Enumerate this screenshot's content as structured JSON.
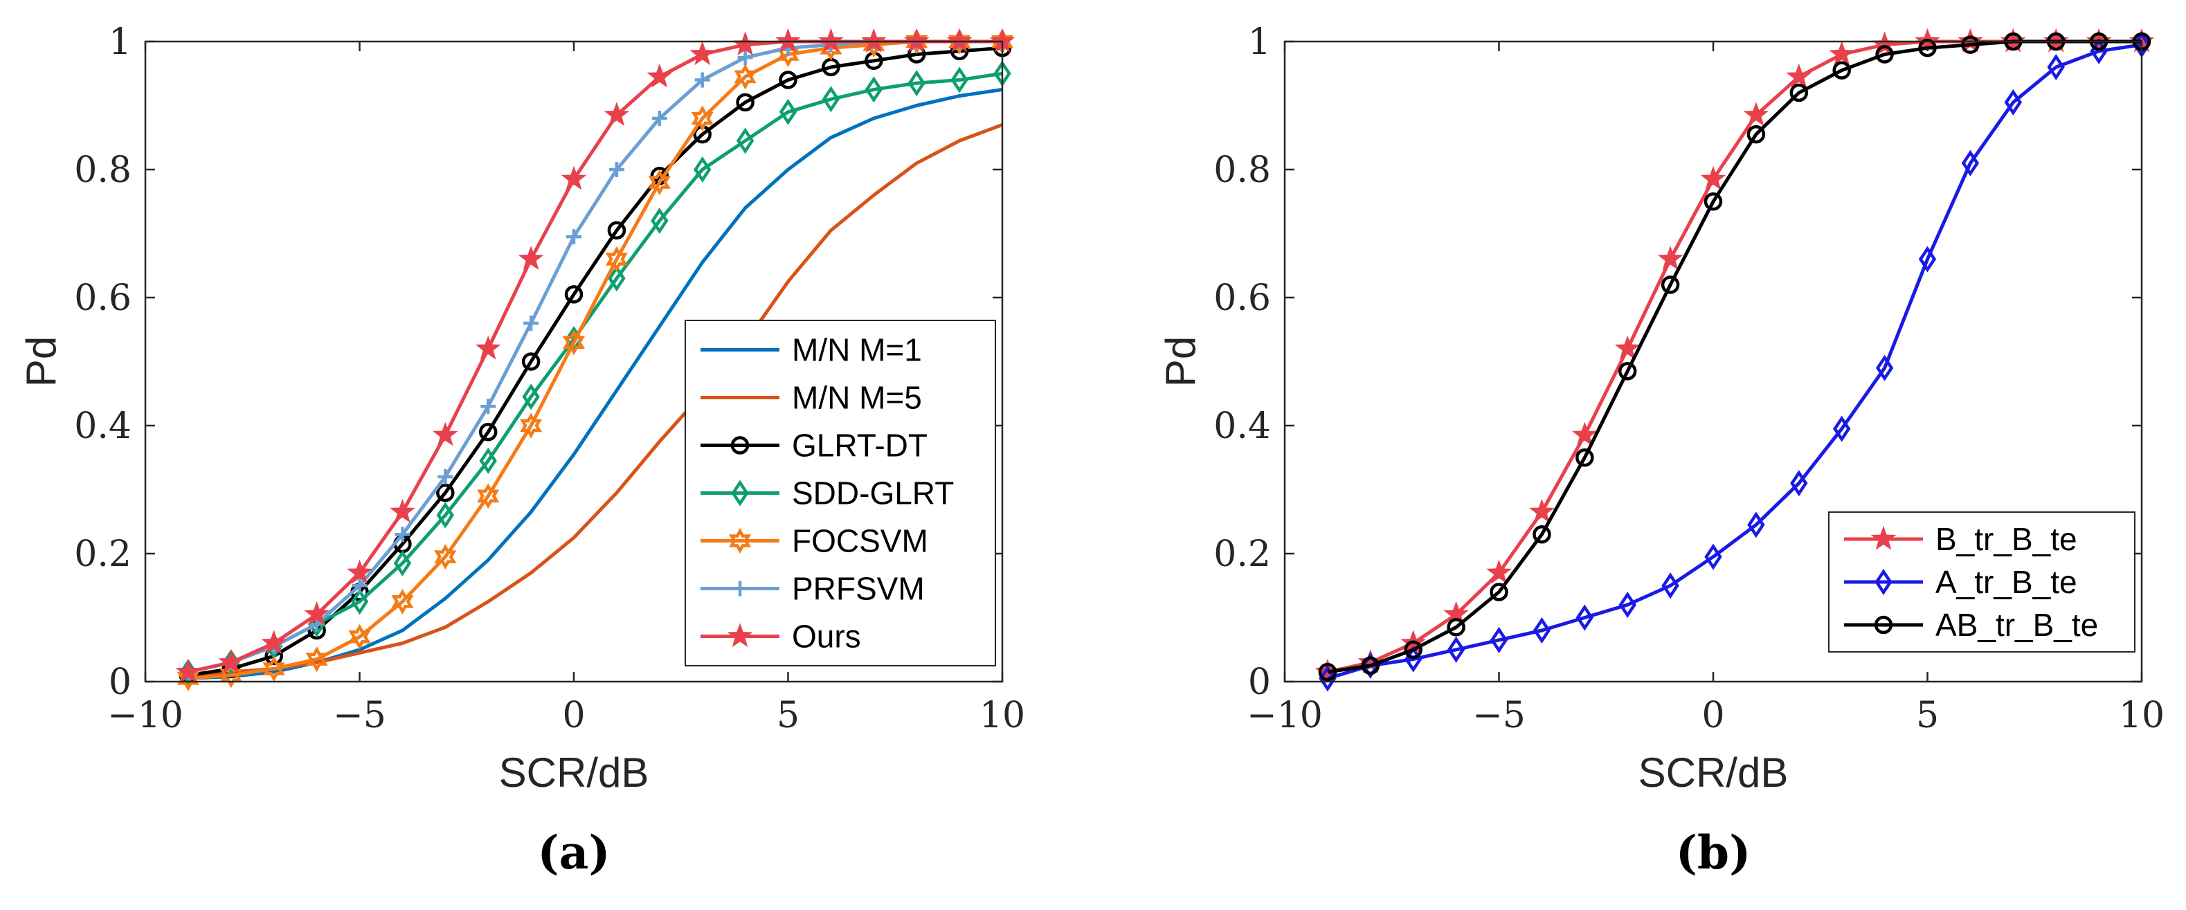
{
  "chart_data": [
    {
      "type": "line",
      "panel_label": "(a)",
      "xlabel": "SCR/dB",
      "ylabel": "Pd",
      "xlim": [
        -10,
        10
      ],
      "ylim": [
        0,
        1
      ],
      "xticks": [
        -10,
        -5,
        0,
        5,
        10
      ],
      "xtick_labels": [
        "−10",
        "−5",
        "0",
        "5",
        "10"
      ],
      "yticks": [
        0,
        0.2,
        0.4,
        0.6,
        0.8,
        1
      ],
      "ytick_labels": [
        "0",
        "0.2",
        "0.4",
        "0.6",
        "0.8",
        "1"
      ],
      "grid": false,
      "legend_position": "bottom-right",
      "series": [
        {
          "name": "M/N M=1",
          "color": "#0072BD",
          "marker": "none",
          "x": [
            -9,
            -8,
            -7,
            -6,
            -5,
            -4,
            -3,
            -2,
            -1,
            0,
            1,
            2,
            3,
            4,
            5,
            6,
            7,
            8,
            9,
            10
          ],
          "y": [
            0.005,
            0.008,
            0.015,
            0.03,
            0.05,
            0.08,
            0.13,
            0.19,
            0.265,
            0.355,
            0.455,
            0.555,
            0.655,
            0.74,
            0.8,
            0.85,
            0.88,
            0.9,
            0.915,
            0.925
          ]
        },
        {
          "name": "M/N M=5",
          "color": "#D95319",
          "marker": "none",
          "x": [
            -9,
            -8,
            -7,
            -6,
            -5,
            -4,
            -3,
            -2,
            -1,
            0,
            1,
            2,
            3,
            4,
            5,
            6,
            7,
            8,
            9,
            10
          ],
          "y": [
            0.01,
            0.015,
            0.02,
            0.03,
            0.045,
            0.06,
            0.085,
            0.125,
            0.17,
            0.225,
            0.295,
            0.375,
            0.45,
            0.53,
            0.625,
            0.705,
            0.76,
            0.81,
            0.845,
            0.87
          ]
        },
        {
          "name": "GLRT-DT",
          "color": "#000000",
          "marker": "circle",
          "x": [
            -9,
            -8,
            -7,
            -6,
            -5,
            -4,
            -3,
            -2,
            -1,
            0,
            1,
            2,
            3,
            4,
            5,
            6,
            7,
            8,
            9,
            10
          ],
          "y": [
            0.01,
            0.02,
            0.04,
            0.08,
            0.14,
            0.215,
            0.295,
            0.39,
            0.5,
            0.605,
            0.705,
            0.79,
            0.855,
            0.905,
            0.94,
            0.96,
            0.97,
            0.98,
            0.985,
            0.99
          ]
        },
        {
          "name": "SDD-GLRT",
          "color": "#0E9F71",
          "marker": "diamond",
          "x": [
            -9,
            -8,
            -7,
            -6,
            -5,
            -4,
            -3,
            -2,
            -1,
            0,
            1,
            2,
            3,
            4,
            5,
            6,
            7,
            8,
            9,
            10
          ],
          "y": [
            0.015,
            0.03,
            0.055,
            0.09,
            0.125,
            0.185,
            0.26,
            0.345,
            0.445,
            0.535,
            0.63,
            0.72,
            0.8,
            0.845,
            0.89,
            0.91,
            0.925,
            0.935,
            0.94,
            0.95
          ]
        },
        {
          "name": "FOCSVM",
          "color": "#F47B16",
          "marker": "hexagram",
          "x": [
            -9,
            -8,
            -7,
            -6,
            -5,
            -4,
            -3,
            -2,
            -1,
            0,
            1,
            2,
            3,
            4,
            5,
            6,
            7,
            8,
            9,
            10
          ],
          "y": [
            0.005,
            0.01,
            0.02,
            0.035,
            0.07,
            0.125,
            0.195,
            0.29,
            0.4,
            0.53,
            0.66,
            0.78,
            0.88,
            0.945,
            0.98,
            0.99,
            0.995,
            1,
            1,
            1
          ]
        },
        {
          "name": "PRFSVM",
          "color": "#6A9FD4",
          "marker": "plus",
          "x": [
            -9,
            -8,
            -7,
            -6,
            -5,
            -4,
            -3,
            -2,
            -1,
            0,
            1,
            2,
            3,
            4,
            5,
            6,
            7,
            8,
            9,
            10
          ],
          "y": [
            0.015,
            0.03,
            0.055,
            0.09,
            0.15,
            0.23,
            0.32,
            0.43,
            0.56,
            0.695,
            0.8,
            0.88,
            0.94,
            0.975,
            0.99,
            0.995,
            1,
            1,
            1,
            1
          ]
        },
        {
          "name": "Ours",
          "color": "#E8414B",
          "marker": "pentagram",
          "x": [
            -9,
            -8,
            -7,
            -6,
            -5,
            -4,
            -3,
            -2,
            -1,
            0,
            1,
            2,
            3,
            4,
            5,
            6,
            7,
            8,
            9,
            10
          ],
          "y": [
            0.015,
            0.03,
            0.06,
            0.105,
            0.17,
            0.265,
            0.385,
            0.52,
            0.66,
            0.785,
            0.885,
            0.945,
            0.98,
            0.995,
            1,
            1,
            1,
            1,
            1,
            1
          ]
        }
      ]
    },
    {
      "type": "line",
      "panel_label": "(b)",
      "xlabel": "SCR/dB",
      "ylabel": "Pd",
      "xlim": [
        -10,
        10
      ],
      "ylim": [
        0,
        1
      ],
      "xticks": [
        -10,
        -5,
        0,
        5,
        10
      ],
      "xtick_labels": [
        "−10",
        "−5",
        "0",
        "5",
        "10"
      ],
      "yticks": [
        0,
        0.2,
        0.4,
        0.6,
        0.8,
        1
      ],
      "ytick_labels": [
        "0",
        "0.2",
        "0.4",
        "0.6",
        "0.8",
        "1"
      ],
      "grid": false,
      "legend_position": "bottom-right",
      "series": [
        {
          "name": "B_tr_B_te",
          "color": "#E8414B",
          "marker": "pentagram",
          "x": [
            -9,
            -8,
            -7,
            -6,
            -5,
            -4,
            -3,
            -2,
            -1,
            0,
            1,
            2,
            3,
            4,
            5,
            6,
            7,
            8,
            9,
            10
          ],
          "y": [
            0.015,
            0.03,
            0.06,
            0.105,
            0.17,
            0.265,
            0.385,
            0.52,
            0.66,
            0.785,
            0.885,
            0.945,
            0.98,
            0.995,
            1,
            1,
            1,
            1,
            1,
            1
          ]
        },
        {
          "name": "A_tr_B_te",
          "color": "#1A1AE6",
          "marker": "diamond",
          "x": [
            -9,
            -8,
            -7,
            -6,
            -5,
            -4,
            -3,
            -2,
            -1,
            0,
            1,
            2,
            3,
            4,
            5,
            6,
            7,
            8,
            9,
            10
          ],
          "y": [
            0.005,
            0.025,
            0.035,
            0.05,
            0.065,
            0.08,
            0.1,
            0.12,
            0.15,
            0.195,
            0.245,
            0.31,
            0.395,
            0.49,
            0.66,
            0.81,
            0.905,
            0.96,
            0.985,
            0.995
          ]
        },
        {
          "name": "AB_tr_B_te",
          "color": "#000000",
          "marker": "circle",
          "x": [
            -9,
            -8,
            -7,
            -6,
            -5,
            -4,
            -3,
            -2,
            -1,
            0,
            1,
            2,
            3,
            4,
            5,
            6,
            7,
            8,
            9,
            10
          ],
          "y": [
            0.015,
            0.025,
            0.05,
            0.085,
            0.14,
            0.23,
            0.35,
            0.485,
            0.62,
            0.75,
            0.855,
            0.92,
            0.955,
            0.98,
            0.99,
            0.995,
            1,
            1,
            1,
            1
          ]
        }
      ]
    }
  ]
}
